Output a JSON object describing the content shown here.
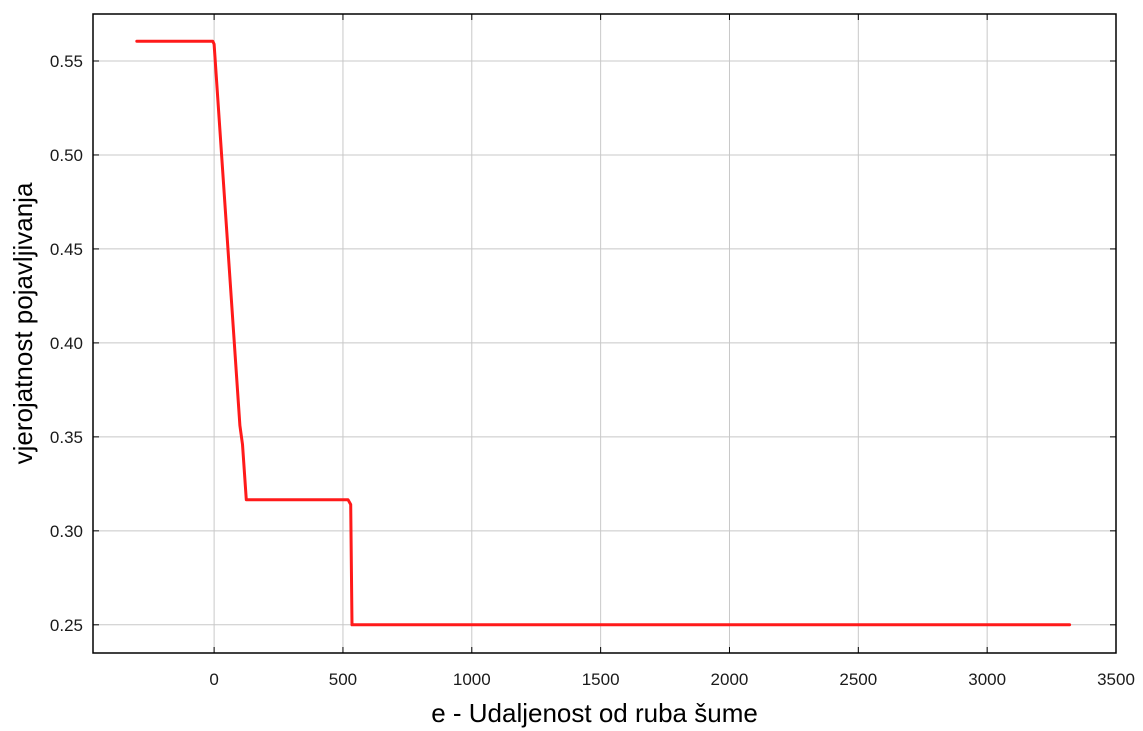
{
  "chart_data": {
    "type": "line",
    "title": "",
    "xlabel": "e - Udaljenost od ruba šume",
    "ylabel": "vjerojatnost pojavljivanja",
    "xlim": [
      -470,
      3500
    ],
    "ylim": [
      0.235,
      0.575
    ],
    "x_ticks": [
      0,
      500,
      1000,
      1500,
      2000,
      2500,
      3000,
      3500
    ],
    "x_tick_labels": [
      "0",
      "500",
      "1000",
      "1500",
      "2000",
      "2500",
      "3000",
      "3500"
    ],
    "y_ticks": [
      0.25,
      0.3,
      0.35,
      0.4,
      0.45,
      0.5,
      0.55
    ],
    "y_tick_labels": [
      "0.25",
      "0.30",
      "0.35",
      "0.40",
      "0.45",
      "0.50",
      "0.55"
    ],
    "grid": true,
    "series": [
      {
        "color": "#ff1a1a",
        "x": [
          -300,
          -5,
          0,
          100,
          110,
          125,
          520,
          530,
          535,
          3320
        ],
        "y": [
          0.5605,
          0.5605,
          0.559,
          0.356,
          0.346,
          0.3165,
          0.3165,
          0.314,
          0.25,
          0.25
        ]
      }
    ]
  }
}
